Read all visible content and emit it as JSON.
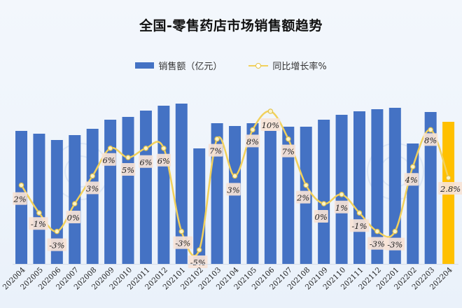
{
  "title": "全国-零售药店市场销售额趋势",
  "legend": {
    "bar_label": "销售额（亿元）",
    "line_label": "同比增长率%"
  },
  "colors": {
    "bar": "#4472c4",
    "bar_highlight": "#ffc000",
    "line": "#f2d15c",
    "label_bg": "#f7e3d6"
  },
  "chart_data": {
    "type": "bar+line",
    "title": "全国-零售药店市场销售额趋势",
    "xlabel": "",
    "ylabel": "",
    "grid": false,
    "legend_position": "top",
    "categories": [
      "202004",
      "202005",
      "202006",
      "202007",
      "202008",
      "202009",
      "202010",
      "202011",
      "202012",
      "202101",
      "202102",
      "202103",
      "202104",
      "202105",
      "202106",
      "202107",
      "202108",
      "202109",
      "202110",
      "202111",
      "202112",
      "202201",
      "202202",
      "202203",
      "202204"
    ],
    "series": [
      {
        "name": "销售额（亿元）",
        "type": "bar",
        "values": [
          190,
          186,
          177,
          184,
          193,
          206,
          210,
          219,
          226,
          229,
          165,
          201,
          197,
          201,
          190,
          196,
          196,
          206,
          213,
          218,
          221,
          223,
          172,
          217,
          203
        ],
        "highlight_last": true
      },
      {
        "name": "同比增长率%",
        "type": "line",
        "values": [
          2,
          -1,
          -3,
          0,
          3,
          6,
          5,
          6,
          6,
          -3,
          -5,
          7,
          3,
          8,
          10,
          7,
          2,
          0,
          1,
          -1,
          -3,
          -3,
          4,
          8,
          2.8
        ],
        "labels": [
          "2%",
          "-1%",
          "-3%",
          "0%",
          "3%",
          "6%",
          "5%",
          "6%",
          "6%",
          "-3%",
          "-5%",
          "7%",
          "3%",
          "8%",
          "10%",
          "7%",
          "2%",
          "0%",
          "1%",
          "-1%",
          "-3%",
          "-3%",
          "4%",
          "8%",
          "2.8%"
        ]
      }
    ]
  }
}
